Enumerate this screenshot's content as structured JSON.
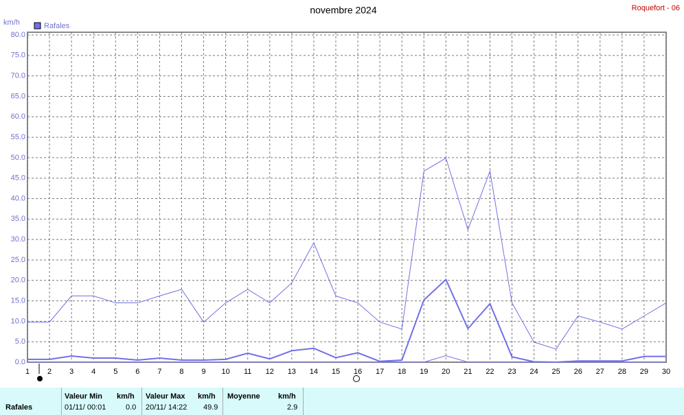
{
  "chart_data": {
    "type": "line",
    "title": "novembre 2024",
    "subtitle": "Roquefort - 06",
    "y_label": "km/h",
    "legend": "Rafales",
    "x": [
      1,
      2,
      3,
      4,
      5,
      6,
      7,
      8,
      9,
      10,
      11,
      12,
      13,
      14,
      15,
      16,
      17,
      18,
      19,
      20,
      21,
      22,
      23,
      24,
      25,
      26,
      27,
      28,
      29,
      30
    ],
    "xlim": [
      1,
      30
    ],
    "xticks": [
      1,
      2,
      3,
      4,
      5,
      6,
      7,
      8,
      9,
      10,
      11,
      12,
      13,
      14,
      15,
      16,
      17,
      18,
      19,
      20,
      21,
      22,
      23,
      24,
      25,
      26,
      27,
      28,
      29,
      30
    ],
    "ylim": [
      0,
      80
    ],
    "yticks": [
      {
        "value": 0,
        "label": "0.0"
      },
      {
        "value": 5,
        "label": "5.0"
      },
      {
        "value": 10,
        "label": "10.0"
      },
      {
        "value": 15,
        "label": "15.0"
      },
      {
        "value": 20,
        "label": "20.0"
      },
      {
        "value": 25,
        "label": "25.0"
      },
      {
        "value": 30,
        "label": "30.0"
      },
      {
        "value": 35,
        "label": "35.0"
      },
      {
        "value": 40,
        "label": "40.0"
      },
      {
        "value": 45,
        "label": "45.0"
      },
      {
        "value": 50,
        "label": "50.0"
      },
      {
        "value": 55,
        "label": "55.0"
      },
      {
        "value": 60,
        "label": "60.0"
      },
      {
        "value": 65,
        "label": "65.0"
      },
      {
        "value": 70,
        "label": "70.0"
      },
      {
        "value": 75,
        "label": "75.0"
      },
      {
        "value": 80,
        "label": "80.0"
      }
    ],
    "grid": true,
    "series": [
      {
        "color": "#7070e0",
        "width": 1,
        "values": [
          9.8,
          9.8,
          16.2,
          16.2,
          14.5,
          14.5,
          16.2,
          17.8,
          9.8,
          14.5,
          17.8,
          14.5,
          19.4,
          29.2,
          16.2,
          14.5,
          9.8,
          8.1,
          46.7,
          49.9,
          32.4,
          46.7,
          14.5,
          4.9,
          3.2,
          11.3,
          9.8,
          8.1,
          11.3,
          14.5
        ]
      },
      {
        "color": "#6f6fe8",
        "width": 2,
        "values": [
          0.7,
          0.7,
          1.5,
          1.0,
          1.0,
          0.5,
          1.0,
          0.5,
          0.5,
          0.7,
          2.2,
          0.8,
          2.8,
          3.4,
          1.1,
          2.3,
          0.2,
          0.5,
          15.2,
          20.2,
          8.2,
          14.3,
          1.3,
          0.1,
          0,
          0.3,
          0.3,
          0.3,
          1.4,
          1.4
        ]
      },
      {
        "color": "#7070e0",
        "width": 1,
        "values": [
          0,
          0,
          0,
          0,
          0,
          0,
          0,
          0,
          0,
          0,
          0,
          0,
          0,
          0,
          0,
          0,
          0,
          0,
          0,
          1.6,
          0,
          0,
          0,
          0,
          0,
          0,
          0,
          0,
          0,
          0
        ]
      }
    ]
  },
  "table": {
    "headers": [
      "Valeur Min",
      "km/h",
      "Valeur Max",
      "km/h",
      "Moyenne",
      "km/h"
    ],
    "row": [
      "Rafales",
      "01/11/ 00:01",
      "0.0",
      "20/11/ 14:22",
      "49.9",
      "2.9"
    ]
  }
}
